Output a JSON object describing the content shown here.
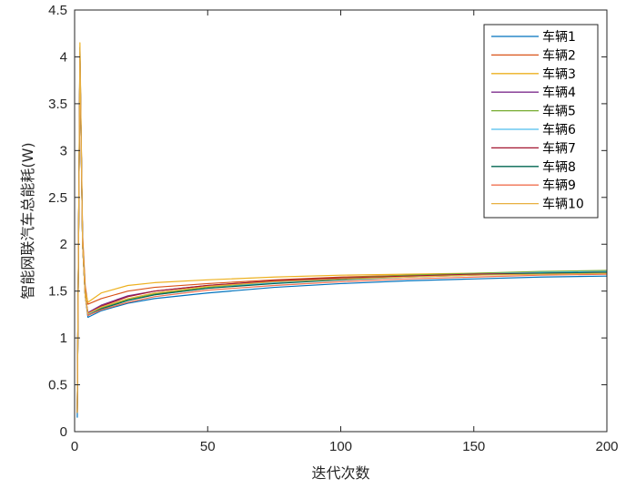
{
  "chart_data": {
    "type": "line",
    "title": "",
    "xlabel": "迭代次数",
    "ylabel": "智能网联汽车总能耗(W)",
    "xlim": [
      0,
      200
    ],
    "ylim": [
      0,
      4.5
    ],
    "xticks": [
      0,
      50,
      100,
      150,
      200
    ],
    "yticks": [
      0,
      0.5,
      1,
      1.5,
      2,
      2.5,
      3,
      3.5,
      4,
      4.5
    ],
    "xtick_labels": [
      "0",
      "50",
      "100",
      "150",
      "200"
    ],
    "ytick_labels": [
      "0",
      "0.5",
      "1",
      "1.5",
      "2",
      "2.5",
      "3",
      "3.5",
      "4",
      "4.5"
    ],
    "grid": false,
    "legend_position": "top-right",
    "series": [
      {
        "name": "车辆1",
        "color": "#0072BD",
        "x": [
          1,
          2,
          3,
          4,
          5,
          10,
          20,
          30,
          50,
          75,
          100,
          125,
          150,
          175,
          200
        ],
        "y": [
          0.15,
          4.1,
          2.0,
          1.45,
          1.22,
          1.29,
          1.37,
          1.42,
          1.48,
          1.54,
          1.58,
          1.61,
          1.63,
          1.65,
          1.66
        ]
      },
      {
        "name": "车辆2",
        "color": "#D95319",
        "x": [
          1,
          2,
          3,
          4,
          5,
          10,
          20,
          30,
          50,
          75,
          100,
          125,
          150,
          175,
          200
        ],
        "y": [
          0.2,
          4.05,
          2.1,
          1.55,
          1.36,
          1.42,
          1.5,
          1.54,
          1.58,
          1.62,
          1.65,
          1.67,
          1.68,
          1.69,
          1.7
        ]
      },
      {
        "name": "车辆3",
        "color": "#EDB120",
        "x": [
          1,
          2,
          3,
          4,
          5,
          10,
          20,
          30,
          50,
          75,
          100,
          125,
          150,
          175,
          200
        ],
        "y": [
          0.2,
          4.15,
          2.05,
          1.5,
          1.38,
          1.48,
          1.56,
          1.59,
          1.62,
          1.65,
          1.67,
          1.68,
          1.69,
          1.7,
          1.71
        ]
      },
      {
        "name": "车辆4",
        "color": "#7E2F8E",
        "x": [
          1,
          2,
          3,
          4,
          5,
          10,
          20,
          30,
          50,
          75,
          100,
          125,
          150,
          175,
          200
        ],
        "y": [
          0.2,
          4.0,
          2.0,
          1.45,
          1.27,
          1.35,
          1.45,
          1.5,
          1.56,
          1.61,
          1.64,
          1.66,
          1.68,
          1.69,
          1.7
        ]
      },
      {
        "name": "车辆5",
        "color": "#77AC30",
        "x": [
          1,
          2,
          3,
          4,
          5,
          10,
          20,
          30,
          50,
          75,
          100,
          125,
          150,
          175,
          200
        ],
        "y": [
          0.2,
          4.0,
          2.0,
          1.45,
          1.25,
          1.32,
          1.41,
          1.47,
          1.54,
          1.6,
          1.64,
          1.67,
          1.69,
          1.71,
          1.72
        ]
      },
      {
        "name": "车辆6",
        "color": "#4DBEEE",
        "x": [
          1,
          2,
          3,
          4,
          5,
          10,
          20,
          30,
          50,
          75,
          100,
          125,
          150,
          175,
          200
        ],
        "y": [
          0.2,
          4.0,
          2.0,
          1.45,
          1.25,
          1.31,
          1.4,
          1.46,
          1.53,
          1.59,
          1.63,
          1.66,
          1.68,
          1.7,
          1.71
        ]
      },
      {
        "name": "车辆7",
        "color": "#A2142F",
        "x": [
          1,
          2,
          3,
          4,
          5,
          10,
          20,
          30,
          50,
          75,
          100,
          125,
          150,
          175,
          200
        ],
        "y": [
          0.2,
          4.0,
          2.0,
          1.45,
          1.26,
          1.34,
          1.44,
          1.5,
          1.56,
          1.61,
          1.64,
          1.66,
          1.68,
          1.69,
          1.7
        ]
      },
      {
        "name": "车辆8",
        "color": "#006450",
        "x": [
          1,
          2,
          3,
          4,
          5,
          10,
          20,
          30,
          50,
          75,
          100,
          125,
          150,
          175,
          200
        ],
        "y": [
          0.2,
          4.0,
          2.0,
          1.45,
          1.24,
          1.31,
          1.4,
          1.46,
          1.53,
          1.58,
          1.62,
          1.65,
          1.67,
          1.69,
          1.7
        ]
      },
      {
        "name": "车辆9",
        "color": "#F07050",
        "x": [
          1,
          2,
          3,
          4,
          5,
          10,
          20,
          30,
          50,
          75,
          100,
          125,
          150,
          175,
          200
        ],
        "y": [
          0.2,
          4.0,
          2.0,
          1.45,
          1.24,
          1.3,
          1.38,
          1.44,
          1.51,
          1.56,
          1.6,
          1.63,
          1.65,
          1.67,
          1.68
        ]
      },
      {
        "name": "车辆10",
        "color": "#E8B040",
        "x": [
          1,
          2,
          3,
          4,
          5,
          10,
          20,
          30,
          50,
          75,
          100,
          125,
          150,
          175,
          200
        ],
        "y": [
          0.2,
          4.1,
          2.0,
          1.45,
          1.26,
          1.33,
          1.42,
          1.48,
          1.55,
          1.6,
          1.63,
          1.65,
          1.67,
          1.68,
          1.69
        ]
      }
    ]
  }
}
